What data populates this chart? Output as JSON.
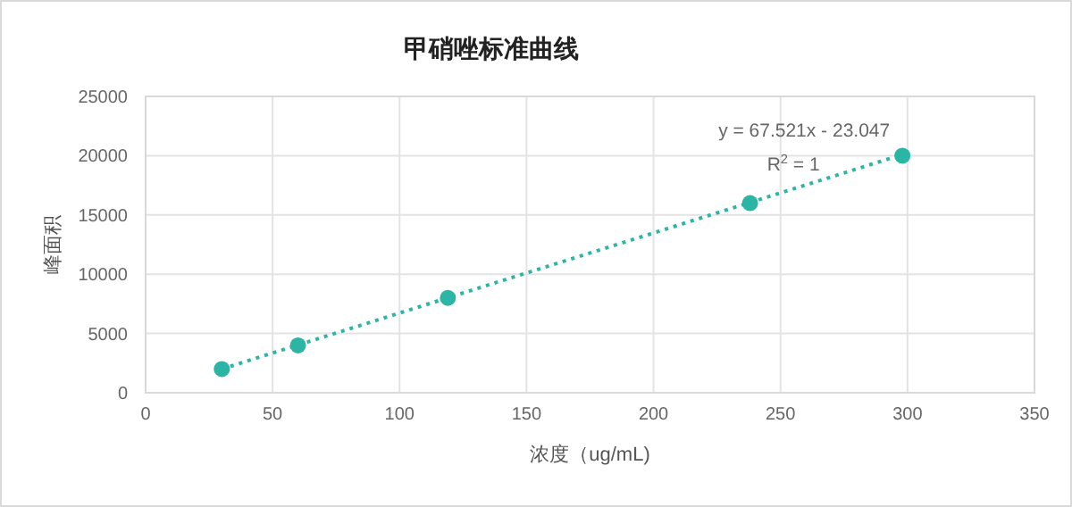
{
  "chart_data": {
    "type": "scatter",
    "title": "甲硝唑标准曲线",
    "xlabel": "浓度（ug/mL)",
    "ylabel": "峰面积",
    "series": [
      {
        "type": "scatter",
        "color": "#2bb5a5",
        "x": [
          30,
          60,
          119,
          238,
          298
        ],
        "values": [
          2000,
          4000,
          8000,
          16000,
          20000
        ],
        "marker": "circle"
      },
      {
        "type": "line",
        "color": "#2bb5a5",
        "x": [
          30,
          298
        ],
        "values": [
          2000,
          20100
        ],
        "line_style": "dotted",
        "marker": "none"
      }
    ],
    "annotations": [
      "y = 67.521x - 23.047",
      "R$^{2}$ = 1"
    ],
    "xlim": [
      0,
      350
    ],
    "xticks": [
      0,
      50,
      100,
      150,
      200,
      250,
      300,
      350
    ],
    "ylim": [
      0,
      25000
    ],
    "yticks": [
      0,
      5000,
      10000,
      15000,
      20000,
      25000
    ],
    "grid": true
  }
}
